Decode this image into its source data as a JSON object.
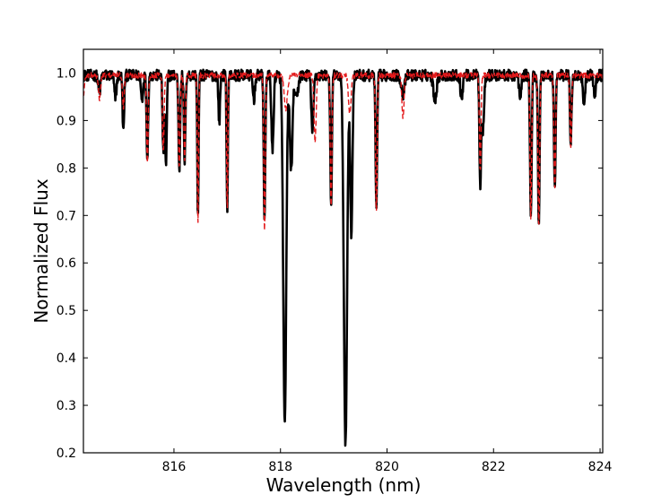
{
  "chart_data": {
    "type": "line",
    "title": "",
    "xlabel": "Wavelength (nm)",
    "ylabel": "Normalized Flux",
    "xlim": [
      814.3,
      824.05
    ],
    "ylim": [
      0.2,
      1.05
    ],
    "xticks": [
      816,
      818,
      820,
      822,
      824
    ],
    "xtick_labels": [
      "816",
      "818",
      "820",
      "822",
      "824"
    ],
    "yticks": [
      0.2,
      0.3,
      0.4,
      0.5,
      0.6,
      0.7,
      0.8,
      0.9,
      1.0
    ],
    "ytick_labels": [
      "0.2",
      "0.3",
      "0.4",
      "0.5",
      "0.6",
      "0.7",
      "0.8",
      "0.9",
      "1.0"
    ],
    "grid": false,
    "legend": "none",
    "series": [
      {
        "style": "solid",
        "color": "#000000",
        "continuum": 0.995,
        "lines": [
          {
            "center": 814.6,
            "depth": 0.04,
            "width": 0.02
          },
          {
            "center": 814.9,
            "depth": 0.05,
            "width": 0.02
          },
          {
            "center": 815.05,
            "depth": 0.12,
            "width": 0.015
          },
          {
            "center": 815.4,
            "depth": 0.05,
            "width": 0.02
          },
          {
            "center": 815.5,
            "depth": 0.17,
            "width": 0.015
          },
          {
            "center": 815.8,
            "depth": 0.16,
            "width": 0.015
          },
          {
            "center": 815.85,
            "depth": 0.19,
            "width": 0.015
          },
          {
            "center": 816.1,
            "depth": 0.2,
            "width": 0.015
          },
          {
            "center": 816.2,
            "depth": 0.18,
            "width": 0.015
          },
          {
            "center": 816.45,
            "depth": 0.3,
            "width": 0.012
          },
          {
            "center": 816.85,
            "depth": 0.1,
            "width": 0.015
          },
          {
            "center": 817.0,
            "depth": 0.28,
            "width": 0.012
          },
          {
            "center": 817.5,
            "depth": 0.05,
            "width": 0.02
          },
          {
            "center": 817.7,
            "depth": 0.3,
            "width": 0.015
          },
          {
            "center": 817.85,
            "depth": 0.16,
            "width": 0.02
          },
          {
            "center": 818.08,
            "depth": 0.74,
            "width": 0.028
          },
          {
            "center": 818.2,
            "depth": 0.2,
            "width": 0.025
          },
          {
            "center": 818.3,
            "depth": 0.05,
            "width": 0.03
          },
          {
            "center": 818.6,
            "depth": 0.12,
            "width": 0.02
          },
          {
            "center": 818.95,
            "depth": 0.28,
            "width": 0.015
          },
          {
            "center": 819.22,
            "depth": 0.78,
            "width": 0.03
          },
          {
            "center": 819.33,
            "depth": 0.34,
            "width": 0.02
          },
          {
            "center": 819.8,
            "depth": 0.28,
            "width": 0.015
          },
          {
            "center": 820.3,
            "depth": 0.04,
            "width": 0.03
          },
          {
            "center": 820.9,
            "depth": 0.05,
            "width": 0.03
          },
          {
            "center": 821.4,
            "depth": 0.05,
            "width": 0.02
          },
          {
            "center": 821.75,
            "depth": 0.23,
            "width": 0.015
          },
          {
            "center": 821.8,
            "depth": 0.12,
            "width": 0.02
          },
          {
            "center": 822.5,
            "depth": 0.05,
            "width": 0.02
          },
          {
            "center": 822.7,
            "depth": 0.3,
            "width": 0.015
          },
          {
            "center": 822.85,
            "depth": 0.31,
            "width": 0.015
          },
          {
            "center": 823.15,
            "depth": 0.24,
            "width": 0.015
          },
          {
            "center": 823.45,
            "depth": 0.14,
            "width": 0.015
          },
          {
            "center": 823.7,
            "depth": 0.06,
            "width": 0.02
          },
          {
            "center": 823.9,
            "depth": 0.04,
            "width": 0.02
          }
        ]
      },
      {
        "style": "dashed",
        "color": "#e31a1c",
        "continuum": 0.995,
        "lines": [
          {
            "center": 814.3,
            "depth": 0.04,
            "width": 0.02
          },
          {
            "center": 814.6,
            "depth": 0.05,
            "width": 0.02
          },
          {
            "center": 815.05,
            "depth": 0.07,
            "width": 0.015
          },
          {
            "center": 815.5,
            "depth": 0.18,
            "width": 0.015
          },
          {
            "center": 815.8,
            "depth": 0.16,
            "width": 0.015
          },
          {
            "center": 816.1,
            "depth": 0.2,
            "width": 0.015
          },
          {
            "center": 816.2,
            "depth": 0.18,
            "width": 0.015
          },
          {
            "center": 816.45,
            "depth": 0.31,
            "width": 0.012
          },
          {
            "center": 817.0,
            "depth": 0.28,
            "width": 0.012
          },
          {
            "center": 817.7,
            "depth": 0.33,
            "width": 0.015
          },
          {
            "center": 818.1,
            "depth": 0.07,
            "width": 0.03
          },
          {
            "center": 818.65,
            "depth": 0.14,
            "width": 0.02
          },
          {
            "center": 818.95,
            "depth": 0.28,
            "width": 0.015
          },
          {
            "center": 819.3,
            "depth": 0.08,
            "width": 0.025
          },
          {
            "center": 819.8,
            "depth": 0.29,
            "width": 0.015
          },
          {
            "center": 820.3,
            "depth": 0.09,
            "width": 0.02
          },
          {
            "center": 821.75,
            "depth": 0.2,
            "width": 0.015
          },
          {
            "center": 822.7,
            "depth": 0.3,
            "width": 0.015
          },
          {
            "center": 822.85,
            "depth": 0.32,
            "width": 0.015
          },
          {
            "center": 823.15,
            "depth": 0.24,
            "width": 0.015
          },
          {
            "center": 823.45,
            "depth": 0.15,
            "width": 0.015
          }
        ]
      }
    ]
  }
}
